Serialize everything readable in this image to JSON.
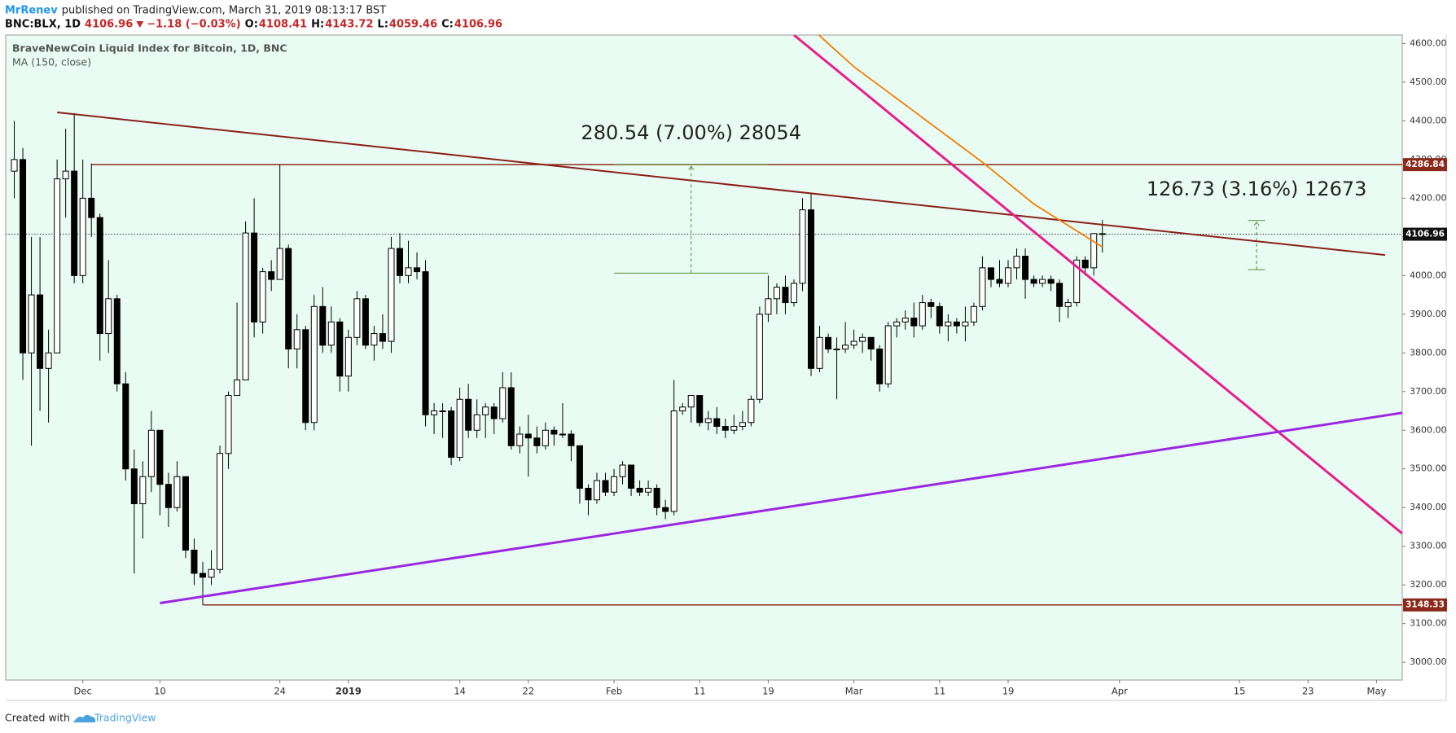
{
  "header": {
    "author": "MrRenev",
    "published": "published on TradingView.com, March 31, 2019 08:13:17 BST",
    "symbol": "BNC:BLX, 1D",
    "change": "−1.18 (−0.03%)",
    "ohlc_labels": [
      "O:",
      "H:",
      "L:",
      "C:"
    ]
  },
  "footer": {
    "created": "Created with",
    "brand": "TradingView"
  },
  "chart_data": {
    "type": "candlestick",
    "title": "BraveNewCoin Liquid Index for Bitcoin, 1D, BNC",
    "x": [
      "2018-11-23",
      "2018-11-24",
      "2018-11-25",
      "2018-11-26",
      "2018-11-27",
      "2018-11-28",
      "2018-11-29",
      "2018-11-30",
      "2018-12-01",
      "2018-12-02",
      "2018-12-03",
      "2018-12-04",
      "2018-12-05",
      "2018-12-06",
      "2018-12-07",
      "2018-12-08",
      "2018-12-09",
      "2018-12-10",
      "2018-12-11",
      "2018-12-12",
      "2018-12-13",
      "2018-12-14",
      "2018-12-15",
      "2018-12-16",
      "2018-12-17",
      "2018-12-18",
      "2018-12-19",
      "2018-12-20",
      "2018-12-21",
      "2018-12-22",
      "2018-12-23",
      "2018-12-24",
      "2018-12-25",
      "2018-12-26",
      "2018-12-27",
      "2018-12-28",
      "2018-12-29",
      "2018-12-30",
      "2018-12-31",
      "2019-01-01",
      "2019-01-02",
      "2019-01-03",
      "2019-01-04",
      "2019-01-05",
      "2019-01-06",
      "2019-01-07",
      "2019-01-08",
      "2019-01-09",
      "2019-01-10",
      "2019-01-11",
      "2019-01-12",
      "2019-01-13",
      "2019-01-14",
      "2019-01-15",
      "2019-01-16",
      "2019-01-17",
      "2019-01-18",
      "2019-01-19",
      "2019-01-20",
      "2019-01-21",
      "2019-01-22",
      "2019-01-23",
      "2019-01-24",
      "2019-01-25",
      "2019-01-26",
      "2019-01-27",
      "2019-01-28",
      "2019-01-29",
      "2019-01-30",
      "2019-01-31",
      "2019-02-01",
      "2019-02-02",
      "2019-02-03",
      "2019-02-04",
      "2019-02-05",
      "2019-02-06",
      "2019-02-07",
      "2019-02-08",
      "2019-02-09",
      "2019-02-10",
      "2019-02-11",
      "2019-02-12",
      "2019-02-13",
      "2019-02-14",
      "2019-02-15",
      "2019-02-16",
      "2019-02-17",
      "2019-02-18",
      "2019-02-19",
      "2019-02-20",
      "2019-02-21",
      "2019-02-22",
      "2019-02-23",
      "2019-02-24",
      "2019-02-25",
      "2019-02-26",
      "2019-02-27",
      "2019-02-28",
      "2019-03-01",
      "2019-03-02",
      "2019-03-03",
      "2019-03-04",
      "2019-03-05",
      "2019-03-06",
      "2019-03-07",
      "2019-03-08",
      "2019-03-09",
      "2019-03-10",
      "2019-03-11",
      "2019-03-12",
      "2019-03-13",
      "2019-03-14",
      "2019-03-15",
      "2019-03-16",
      "2019-03-17",
      "2019-03-18",
      "2019-03-19",
      "2019-03-20",
      "2019-03-21",
      "2019-03-22",
      "2019-03-23",
      "2019-03-24",
      "2019-03-25",
      "2019-03-26",
      "2019-03-27",
      "2019-03-28",
      "2019-03-29",
      "2019-03-30"
    ],
    "open": [
      4270,
      4300,
      3800,
      3950,
      3760,
      3800,
      4250,
      4270,
      4000,
      4200,
      4150,
      3850,
      3940,
      3720,
      3500,
      3410,
      3480,
      3600,
      3460,
      3400,
      3480,
      3290,
      3230,
      3220,
      3240,
      3540,
      3690,
      3730,
      4110,
      3880,
      4010,
      3990,
      4070,
      3810,
      3860,
      3620,
      3920,
      3820,
      3880,
      3740,
      3840,
      3940,
      3820,
      3850,
      3830,
      4070,
      4000,
      4020,
      4010,
      3640,
      3650,
      3650,
      3530,
      3680,
      3600,
      3640,
      3660,
      3630,
      3710,
      3560,
      3590,
      3580,
      3560,
      3600,
      3590,
      3590,
      3560,
      3450,
      3420,
      3470,
      3440,
      3480,
      3510,
      3450,
      3440,
      3450,
      3400,
      3390,
      3650,
      3660,
      3690,
      3620,
      3630,
      3610,
      3600,
      3610,
      3620,
      3680,
      3900,
      3940,
      3970,
      3930,
      3980,
      4170,
      3760,
      3840,
      3810,
      3810,
      3820,
      3830,
      3840,
      3810,
      3720,
      3870,
      3880,
      3890,
      3870,
      3930,
      3920,
      3870,
      3880,
      3870,
      3880,
      3920,
      4020,
      3990,
      3980,
      4020,
      4050,
      3990,
      3980,
      3990,
      3980,
      3920,
      3930,
      4040,
      4020,
      4108.41
    ],
    "high": [
      4400,
      4330,
      4100,
      4100,
      3860,
      4300,
      4380,
      4420,
      4300,
      4290,
      4160,
      4040,
      3950,
      3750,
      3550,
      3520,
      3650,
      3600,
      3490,
      3520,
      3480,
      3320,
      3260,
      3290,
      3560,
      3700,
      3930,
      4140,
      4200,
      4020,
      4040,
      4287,
      4080,
      3900,
      3870,
      3950,
      3970,
      3920,
      3890,
      3860,
      3960,
      3950,
      3870,
      3900,
      4100,
      4110,
      4090,
      4060,
      4040,
      3670,
      3670,
      3660,
      3710,
      3720,
      3680,
      3670,
      3670,
      3750,
      3750,
      3610,
      3640,
      3610,
      3620,
      3610,
      3670,
      3600,
      3560,
      3460,
      3490,
      3490,
      3500,
      3520,
      3510,
      3470,
      3470,
      3460,
      3420,
      3730,
      3670,
      3690,
      3690,
      3650,
      3660,
      3630,
      3640,
      3650,
      3690,
      3920,
      4000,
      3980,
      4000,
      3990,
      4200,
      4210,
      3870,
      3850,
      3840,
      3880,
      3860,
      3850,
      3840,
      3820,
      3880,
      3890,
      3910,
      3930,
      3950,
      3940,
      3930,
      3900,
      3890,
      3920,
      3930,
      4050,
      4020,
      4040,
      4040,
      4070,
      4070,
      4000,
      4000,
      4000,
      3990,
      3940,
      4050,
      4050,
      4110,
      4143.72
    ],
    "low": [
      4200,
      3730,
      3560,
      3650,
      3620,
      3800,
      4150,
      3980,
      3980,
      4100,
      3780,
      3800,
      3700,
      3470,
      3230,
      3320,
      3440,
      3380,
      3350,
      3390,
      3270,
      3200,
      3148.33,
      3200,
      3230,
      3500,
      3690,
      3730,
      3840,
      3850,
      3960,
      3990,
      3760,
      3760,
      3600,
      3600,
      3800,
      3800,
      3700,
      3700,
      3820,
      3810,
      3780,
      3810,
      3800,
      3980,
      3980,
      3990,
      3610,
      3590,
      3580,
      3510,
      3520,
      3580,
      3580,
      3580,
      3590,
      3620,
      3550,
      3540,
      3480,
      3540,
      3550,
      3560,
      3580,
      3520,
      3410,
      3380,
      3410,
      3430,
      3430,
      3460,
      3430,
      3430,
      3430,
      3380,
      3370,
      3380,
      3640,
      3620,
      3610,
      3600,
      3590,
      3580,
      3590,
      3600,
      3610,
      3670,
      3880,
      3900,
      3900,
      3920,
      3960,
      3740,
      3750,
      3800,
      3680,
      3800,
      3810,
      3800,
      3780,
      3700,
      3710,
      3840,
      3860,
      3840,
      3860,
      3890,
      3850,
      3830,
      3850,
      3830,
      3870,
      3910,
      3970,
      3970,
      3970,
      3990,
      3940,
      3970,
      3970,
      3960,
      3880,
      3890,
      3920,
      4000,
      4000,
      4059.46
    ],
    "close": [
      4300,
      3800,
      3950,
      3760,
      3800,
      4250,
      4270,
      4000,
      4200,
      4150,
      3850,
      3940,
      3720,
      3500,
      3410,
      3480,
      3600,
      3460,
      3400,
      3480,
      3290,
      3230,
      3220,
      3240,
      3540,
      3690,
      3730,
      4110,
      3880,
      4010,
      3990,
      4070,
      3810,
      3860,
      3620,
      3920,
      3820,
      3880,
      3740,
      3840,
      3940,
      3820,
      3850,
      3830,
      4070,
      4000,
      4020,
      4010,
      3640,
      3650,
      3650,
      3530,
      3680,
      3600,
      3640,
      3660,
      3630,
      3710,
      3560,
      3590,
      3580,
      3560,
      3600,
      3590,
      3590,
      3560,
      3450,
      3420,
      3470,
      3440,
      3480,
      3510,
      3450,
      3440,
      3450,
      3400,
      3390,
      3650,
      3660,
      3690,
      3620,
      3630,
      3610,
      3600,
      3610,
      3620,
      3680,
      3900,
      3940,
      3970,
      3930,
      3980,
      4170,
      3760,
      3840,
      3810,
      3810,
      3820,
      3830,
      3840,
      3810,
      3720,
      3870,
      3880,
      3890,
      3870,
      3930,
      3920,
      3870,
      3880,
      3870,
      3880,
      3920,
      4020,
      3990,
      3980,
      4020,
      4050,
      3990,
      3980,
      3990,
      3980,
      3920,
      3930,
      4040,
      4020,
      4108.41,
      4106.96
    ],
    "up_color": "#ffffff",
    "down_color": "#000000",
    "background": "#e9fcf3",
    "xlim": [
      "2018-11-22",
      "2019-05-04"
    ],
    "xticks": [
      {
        "value": "2018-12-01",
        "label": "Dec"
      },
      {
        "value": "2018-12-10",
        "label": "10"
      },
      {
        "value": "2018-12-24",
        "label": "24"
      },
      {
        "value": "2019-01-01",
        "label": "2019"
      },
      {
        "value": "2019-01-14",
        "label": "14"
      },
      {
        "value": "2019-01-22",
        "label": "22"
      },
      {
        "value": "2019-02-01",
        "label": "Feb"
      },
      {
        "value": "2019-02-11",
        "label": "11"
      },
      {
        "value": "2019-02-19",
        "label": "19"
      },
      {
        "value": "2019-03-01",
        "label": "Mar"
      },
      {
        "value": "2019-03-11",
        "label": "11"
      },
      {
        "value": "2019-03-19",
        "label": "19"
      },
      {
        "value": "2019-04-01",
        "label": "Apr"
      },
      {
        "value": "2019-04-15",
        "label": "15"
      },
      {
        "value": "2019-04-23",
        "label": "23"
      },
      {
        "value": "2019-05-01",
        "label": "May"
      }
    ],
    "ylim": [
      2954,
      4622
    ],
    "yticks": [
      {
        "value": 3000,
        "label": "3000.00"
      },
      {
        "value": 3100,
        "label": "3100.00"
      },
      {
        "value": 3200,
        "label": "3200.00"
      },
      {
        "value": 3300,
        "label": "3300.00"
      },
      {
        "value": 3400,
        "label": "3400.00"
      },
      {
        "value": 3500,
        "label": "3500.00"
      },
      {
        "value": 3600,
        "label": "3600.00"
      },
      {
        "value": 3700,
        "label": "3700.00"
      },
      {
        "value": 3800,
        "label": "3800.00"
      },
      {
        "value": 3900,
        "label": "3900.00"
      },
      {
        "value": 4000,
        "label": "4000.00"
      },
      {
        "value": 4100,
        "label": "4100.00"
      },
      {
        "value": 4200,
        "label": "4200.00"
      },
      {
        "value": 4300,
        "label": "4300.00"
      },
      {
        "value": 4400,
        "label": "4400.00"
      },
      {
        "value": 4500,
        "label": "4500.00"
      },
      {
        "value": 4600,
        "label": "4600.00"
      }
    ],
    "price_lines": [
      {
        "value": 4286.84,
        "start": "2018-12-02",
        "color": "#8b2a1a"
      },
      {
        "value": 3148.33,
        "start": "2018-12-15",
        "color": "#8b2a1a"
      }
    ],
    "trendlines": [
      {
        "color": "#8b1e1a",
        "start": [
          "2018-11-28",
          4422
        ],
        "end": [
          "2019-05-02",
          4053
        ]
      },
      {
        "color": "#e91e8c",
        "start": [
          "2019-02-22",
          4622
        ],
        "end": [
          "2019-05-04",
          3333
        ]
      },
      {
        "color": "#9b27e0",
        "start": [
          "2018-12-10",
          3153
        ],
        "end": [
          "2019-05-04",
          3645
        ]
      }
    ],
    "ma": {
      "name": "MA (150, close)",
      "color": "#f57c00",
      "x": [
        "2019-02-24",
        "2019-03-01",
        "2019-03-08",
        "2019-03-16",
        "2019-03-22",
        "2019-03-30"
      ],
      "values": [
        4640,
        4540,
        4425,
        4293,
        4185,
        4074
      ]
    },
    "measures": [
      {
        "label": "280.54 (7.00%) 28054",
        "from": 4006.3,
        "to": 4286.84,
        "start": "2019-02-01",
        "end": "2019-02-19"
      },
      {
        "label": "126.73 (3.16%) 12673",
        "from": 4015.5,
        "to": 4142.23,
        "start": "2019-04-16",
        "end": "2019-04-18"
      }
    ]
  }
}
